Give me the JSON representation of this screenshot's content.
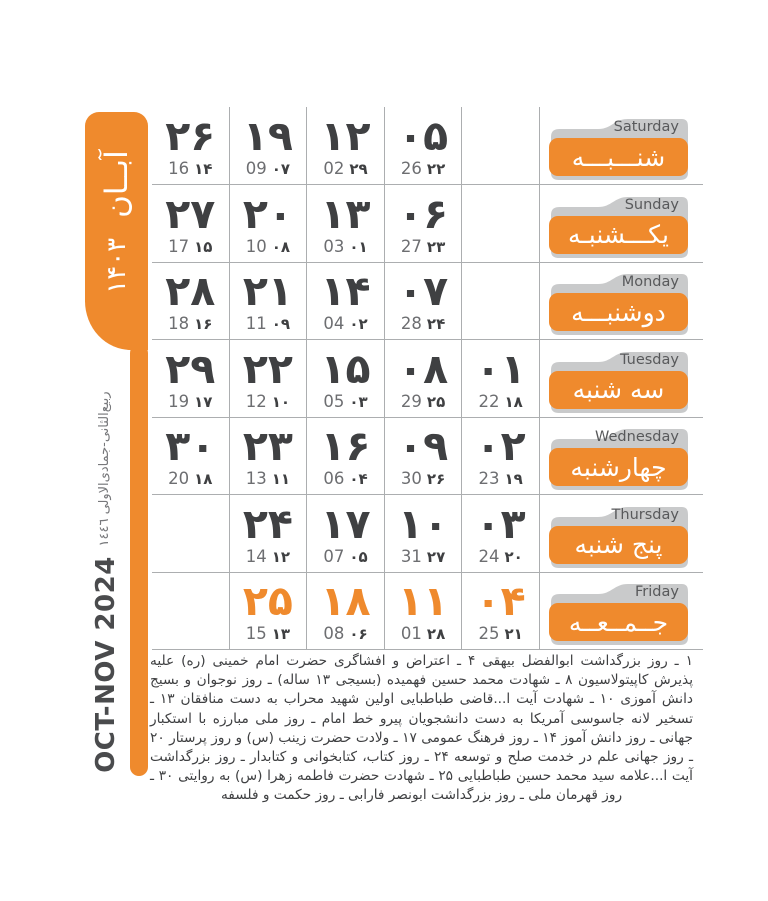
{
  "sidebar": {
    "month_fa": "آبــان",
    "year_fa": "۱۴۰۳",
    "hijri_months": "ربیع‌الثانی-جمادی‌الاولی ١٤٤٦",
    "gregorian_range": "OCT-NOV 2024"
  },
  "weeks": [
    {
      "day_en": "Saturday",
      "day_fa": "شنـــبـــه",
      "holiday": false,
      "cells": [
        {
          "jalali": "۲۶",
          "gregorian": "16",
          "hijri": "۱۴"
        },
        {
          "jalali": "۱۹",
          "gregorian": "09",
          "hijri": "۰۷"
        },
        {
          "jalali": "۱۲",
          "gregorian": "02",
          "hijri": "۲۹"
        },
        {
          "jalali": "۰۵",
          "gregorian": "26",
          "hijri": "۲۲"
        },
        null
      ]
    },
    {
      "day_en": "Sunday",
      "day_fa": "یکـــشنبـه",
      "holiday": false,
      "cells": [
        {
          "jalali": "۲۷",
          "gregorian": "17",
          "hijri": "۱۵"
        },
        {
          "jalali": "۲۰",
          "gregorian": "10",
          "hijri": "۰۸"
        },
        {
          "jalali": "۱۳",
          "gregorian": "03",
          "hijri": "۰۱"
        },
        {
          "jalali": "۰۶",
          "gregorian": "27",
          "hijri": "۲۳"
        },
        null
      ]
    },
    {
      "day_en": "Monday",
      "day_fa": "دوشنبـــه",
      "holiday": false,
      "cells": [
        {
          "jalali": "۲۸",
          "gregorian": "18",
          "hijri": "۱۶"
        },
        {
          "jalali": "۲۱",
          "gregorian": "11",
          "hijri": "۰۹"
        },
        {
          "jalali": "۱۴",
          "gregorian": "04",
          "hijri": "۰۲"
        },
        {
          "jalali": "۰۷",
          "gregorian": "28",
          "hijri": "۲۴"
        },
        null
      ]
    },
    {
      "day_en": "Tuesday",
      "day_fa": "سه شنبه",
      "holiday": false,
      "cells": [
        {
          "jalali": "۲۹",
          "gregorian": "19",
          "hijri": "۱۷"
        },
        {
          "jalali": "۲۲",
          "gregorian": "12",
          "hijri": "۱۰"
        },
        {
          "jalali": "۱۵",
          "gregorian": "05",
          "hijri": "۰۳"
        },
        {
          "jalali": "۰۸",
          "gregorian": "29",
          "hijri": "۲۵"
        },
        {
          "jalali": "۰۱",
          "gregorian": "22",
          "hijri": "۱۸"
        }
      ]
    },
    {
      "day_en": "Wednesday",
      "day_fa": "چهارشنبه",
      "holiday": false,
      "cells": [
        {
          "jalali": "۳۰",
          "gregorian": "20",
          "hijri": "۱۸"
        },
        {
          "jalali": "۲۳",
          "gregorian": "13",
          "hijri": "۱۱"
        },
        {
          "jalali": "۱۶",
          "gregorian": "06",
          "hijri": "۰۴"
        },
        {
          "jalali": "۰۹",
          "gregorian": "30",
          "hijri": "۲۶"
        },
        {
          "jalali": "۰۲",
          "gregorian": "23",
          "hijri": "۱۹"
        }
      ]
    },
    {
      "day_en": "Thursday",
      "day_fa": "پنج شنبه",
      "holiday": false,
      "cells": [
        null,
        {
          "jalali": "۲۴",
          "gregorian": "14",
          "hijri": "۱۲"
        },
        {
          "jalali": "۱۷",
          "gregorian": "07",
          "hijri": "۰۵"
        },
        {
          "jalali": "۱۰",
          "gregorian": "31",
          "hijri": "۲۷"
        },
        {
          "jalali": "۰۳",
          "gregorian": "24",
          "hijri": "۲۰"
        }
      ]
    },
    {
      "day_en": "Friday",
      "day_fa": "جــمــعــه",
      "holiday": true,
      "cells": [
        null,
        {
          "jalali": "۲۵",
          "gregorian": "15",
          "hijri": "۱۳"
        },
        {
          "jalali": "۱۸",
          "gregorian": "08",
          "hijri": "۰۶"
        },
        {
          "jalali": "۱۱",
          "gregorian": "01",
          "hijri": "۲۸"
        },
        {
          "jalali": "۰۴",
          "gregorian": "25",
          "hijri": "۲۱"
        }
      ]
    }
  ],
  "footer": {
    "events_text": "۱ ـ روز بزرگداشت ابوالفضل بیهقی ۴ ـ اعتراض و افشاگری حضرت امام خمینی (ره) علیه پذیرش کاپیتولاسیون ۸ ـ شهادت محمد حسین فهمیده (بسیجی ۱۳ ساله) ـ روز نوجوان و بسیج دانش آموزی ۱۰ ـ شهادت آیت ا...قاضی طباطبایی اولین شهید محراب به دست منافقان ۱۳ ـ تسخیر لانه جاسوسی آمریکا به دست دانشجویان پیرو خط امام ـ روز ملی مبارزه با استکبار جهانی ـ روز دانش آموز ۱۴ ـ روز فرهنگ عمومی ۱۷ ـ ولادت حضرت زینب (س) و روز پرستار ۲۰ ـ روز جهانی علم در خدمت صلح و توسعه ۲۴ ـ روز کتاب، کتابخوانی و کتابدار ـ روز بزرگداشت آیت ا...علامه سید محمد حسین طباطبایی ۲۵ ـ شهادت حضرت فاطمه زهرا (س) به روایتی ۳۰ ـ روز قهرمان ملی ـ روز بزرگداشت ابونصر فارابی ـ روز حکمت و فلسفه"
  },
  "colors": {
    "accent_orange": "#EF8A2D",
    "tab_gray": "#C9CACB",
    "number_dark": "#3F4042",
    "gregorian_gray": "#6D6E71",
    "line_gray": "#ACAEB0",
    "english_label": "#58595B"
  }
}
